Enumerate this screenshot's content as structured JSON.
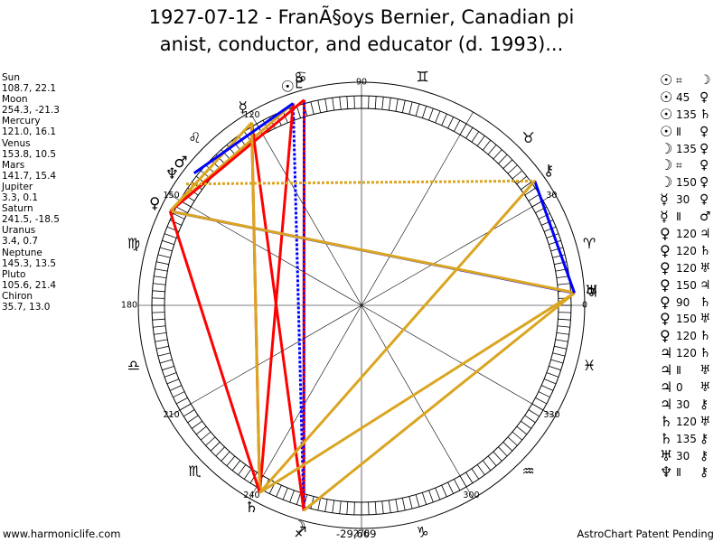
{
  "title": {
    "line1": "1927-07-12 - FranÃ§oys Bernier, Canadian pi",
    "line2": "anist, conductor, and educator (d. 1993)..."
  },
  "planets": [
    {
      "name": "Sun",
      "coords": "108.7, 22.1",
      "glyph": "☉",
      "lon": 108.7
    },
    {
      "name": "Moon",
      "coords": "254.3, -21.3",
      "glyph": "☽",
      "lon": 254.3
    },
    {
      "name": "Mercury",
      "coords": "121.0, 16.1",
      "glyph": "☿",
      "lon": 121.0
    },
    {
      "name": "Venus",
      "coords": "153.8, 10.5",
      "glyph": "♀",
      "lon": 153.8
    },
    {
      "name": "Mars",
      "coords": "141.7, 15.4",
      "glyph": "♂",
      "lon": 141.7
    },
    {
      "name": "Jupiter",
      "coords": "3.3, 0.1",
      "glyph": "♃",
      "lon": 3.3
    },
    {
      "name": "Saturn",
      "coords": "241.5, -18.5",
      "glyph": "♄",
      "lon": 241.5
    },
    {
      "name": "Uranus",
      "coords": "3.4, 0.7",
      "glyph": "♅",
      "lon": 3.4
    },
    {
      "name": "Neptune",
      "coords": "145.3, 13.5",
      "glyph": "♆",
      "lon": 145.3
    },
    {
      "name": "Pluto",
      "coords": "105.6, 21.4",
      "glyph": "♇",
      "lon": 105.6
    },
    {
      "name": "Chiron",
      "coords": "35.7, 13.0",
      "glyph": "⚷",
      "lon": 35.7
    }
  ],
  "aspects": [
    {
      "p1": "☉",
      "sym": "⌗",
      "p2": "☽"
    },
    {
      "p1": "☉",
      "sym": "45",
      "p2": "♀"
    },
    {
      "p1": "☉",
      "sym": "135",
      "p2": "♄"
    },
    {
      "p1": "☉",
      "sym": "Ⅱ",
      "p2": "♀"
    },
    {
      "p1": "☽",
      "sym": "135",
      "p2": "♀"
    },
    {
      "p1": "☽",
      "sym": "⌗",
      "p2": "♀"
    },
    {
      "p1": "☽",
      "sym": "150",
      "p2": "♀"
    },
    {
      "p1": "☿",
      "sym": "30",
      "p2": "♀"
    },
    {
      "p1": "☿",
      "sym": "Ⅱ",
      "p2": "♂"
    },
    {
      "p1": "♀",
      "sym": "120",
      "p2": "♃"
    },
    {
      "p1": "♀",
      "sym": "120",
      "p2": "♄"
    },
    {
      "p1": "♀",
      "sym": "120",
      "p2": "♅"
    },
    {
      "p1": "♀",
      "sym": "150",
      "p2": "♃"
    },
    {
      "p1": "♀",
      "sym": "90",
      "p2": "♄"
    },
    {
      "p1": "♀",
      "sym": "150",
      "p2": "♅"
    },
    {
      "p1": "♀",
      "sym": "120",
      "p2": "♄"
    },
    {
      "p1": "♃",
      "sym": "120",
      "p2": "♄"
    },
    {
      "p1": "♃",
      "sym": "Ⅱ",
      "p2": "♅"
    },
    {
      "p1": "♃",
      "sym": "0",
      "p2": "♅"
    },
    {
      "p1": "♃",
      "sym": "30",
      "p2": "⚷"
    },
    {
      "p1": "♄",
      "sym": "120",
      "p2": "♅"
    },
    {
      "p1": "♄",
      "sym": "135",
      "p2": "⚷"
    },
    {
      "p1": "♅",
      "sym": "30",
      "p2": "⚷"
    },
    {
      "p1": "♆",
      "sym": "Ⅱ",
      "p2": "⚷"
    }
  ],
  "chart_data": {
    "type": "astrology-wheel",
    "degree_labels": [
      "0",
      "30",
      "90",
      "120",
      "150",
      "180",
      "210",
      "240",
      "270",
      "300",
      "330"
    ],
    "zodiac": [
      "♈",
      "♉",
      "♊",
      "♋",
      "♌",
      "♍",
      "♎",
      "♏",
      "♐",
      "♑",
      "♒",
      "♓"
    ],
    "aspect_lines": [
      {
        "from": 108.7,
        "to": 254.3,
        "color": "#0000ff",
        "style": "dotted"
      },
      {
        "from": 108.7,
        "to": 241.5,
        "color": "#ff0000",
        "style": "solid"
      },
      {
        "from": 108.7,
        "to": 153.8,
        "color": "#daa520",
        "style": "solid"
      },
      {
        "from": 105.6,
        "to": 254.3,
        "color": "#0000ff",
        "style": "solid"
      },
      {
        "from": 105.6,
        "to": 254.3,
        "color": "#ff0000",
        "style": "dotted"
      },
      {
        "from": 105.6,
        "to": 153.8,
        "color": "#ff0000",
        "style": "solid"
      },
      {
        "from": 121.0,
        "to": 254.3,
        "color": "#ff0000",
        "style": "solid"
      },
      {
        "from": 121.0,
        "to": 241.5,
        "color": "#ff0000",
        "style": "solid"
      },
      {
        "from": 121.0,
        "to": 153.8,
        "color": "#daa520",
        "style": "solid"
      },
      {
        "from": 121.0,
        "to": 241.5,
        "color": "#daa520",
        "style": "solid"
      },
      {
        "from": 145.3,
        "to": 35.7,
        "color": "#daa520",
        "style": "dotted"
      },
      {
        "from": 141.7,
        "to": 108.7,
        "color": "#0000ff",
        "style": "solid"
      },
      {
        "from": 153.8,
        "to": 3.3,
        "color": "#0000ff",
        "style": "solid"
      },
      {
        "from": 153.8,
        "to": 3.4,
        "color": "#daa520",
        "style": "solid"
      },
      {
        "from": 153.8,
        "to": 241.5,
        "color": "#ff0000",
        "style": "solid"
      },
      {
        "from": 3.3,
        "to": 241.5,
        "color": "#daa520",
        "style": "solid"
      },
      {
        "from": 3.3,
        "to": 254.3,
        "color": "#daa520",
        "style": "solid"
      },
      {
        "from": 35.7,
        "to": 3.3,
        "color": "#0000ff",
        "style": "solid"
      },
      {
        "from": 35.7,
        "to": 241.5,
        "color": "#daa520",
        "style": "solid"
      }
    ]
  },
  "footer": {
    "website": "www.harmoniclife.com",
    "coords": "-29,669",
    "patent": "AstroChart Patent Pending"
  }
}
